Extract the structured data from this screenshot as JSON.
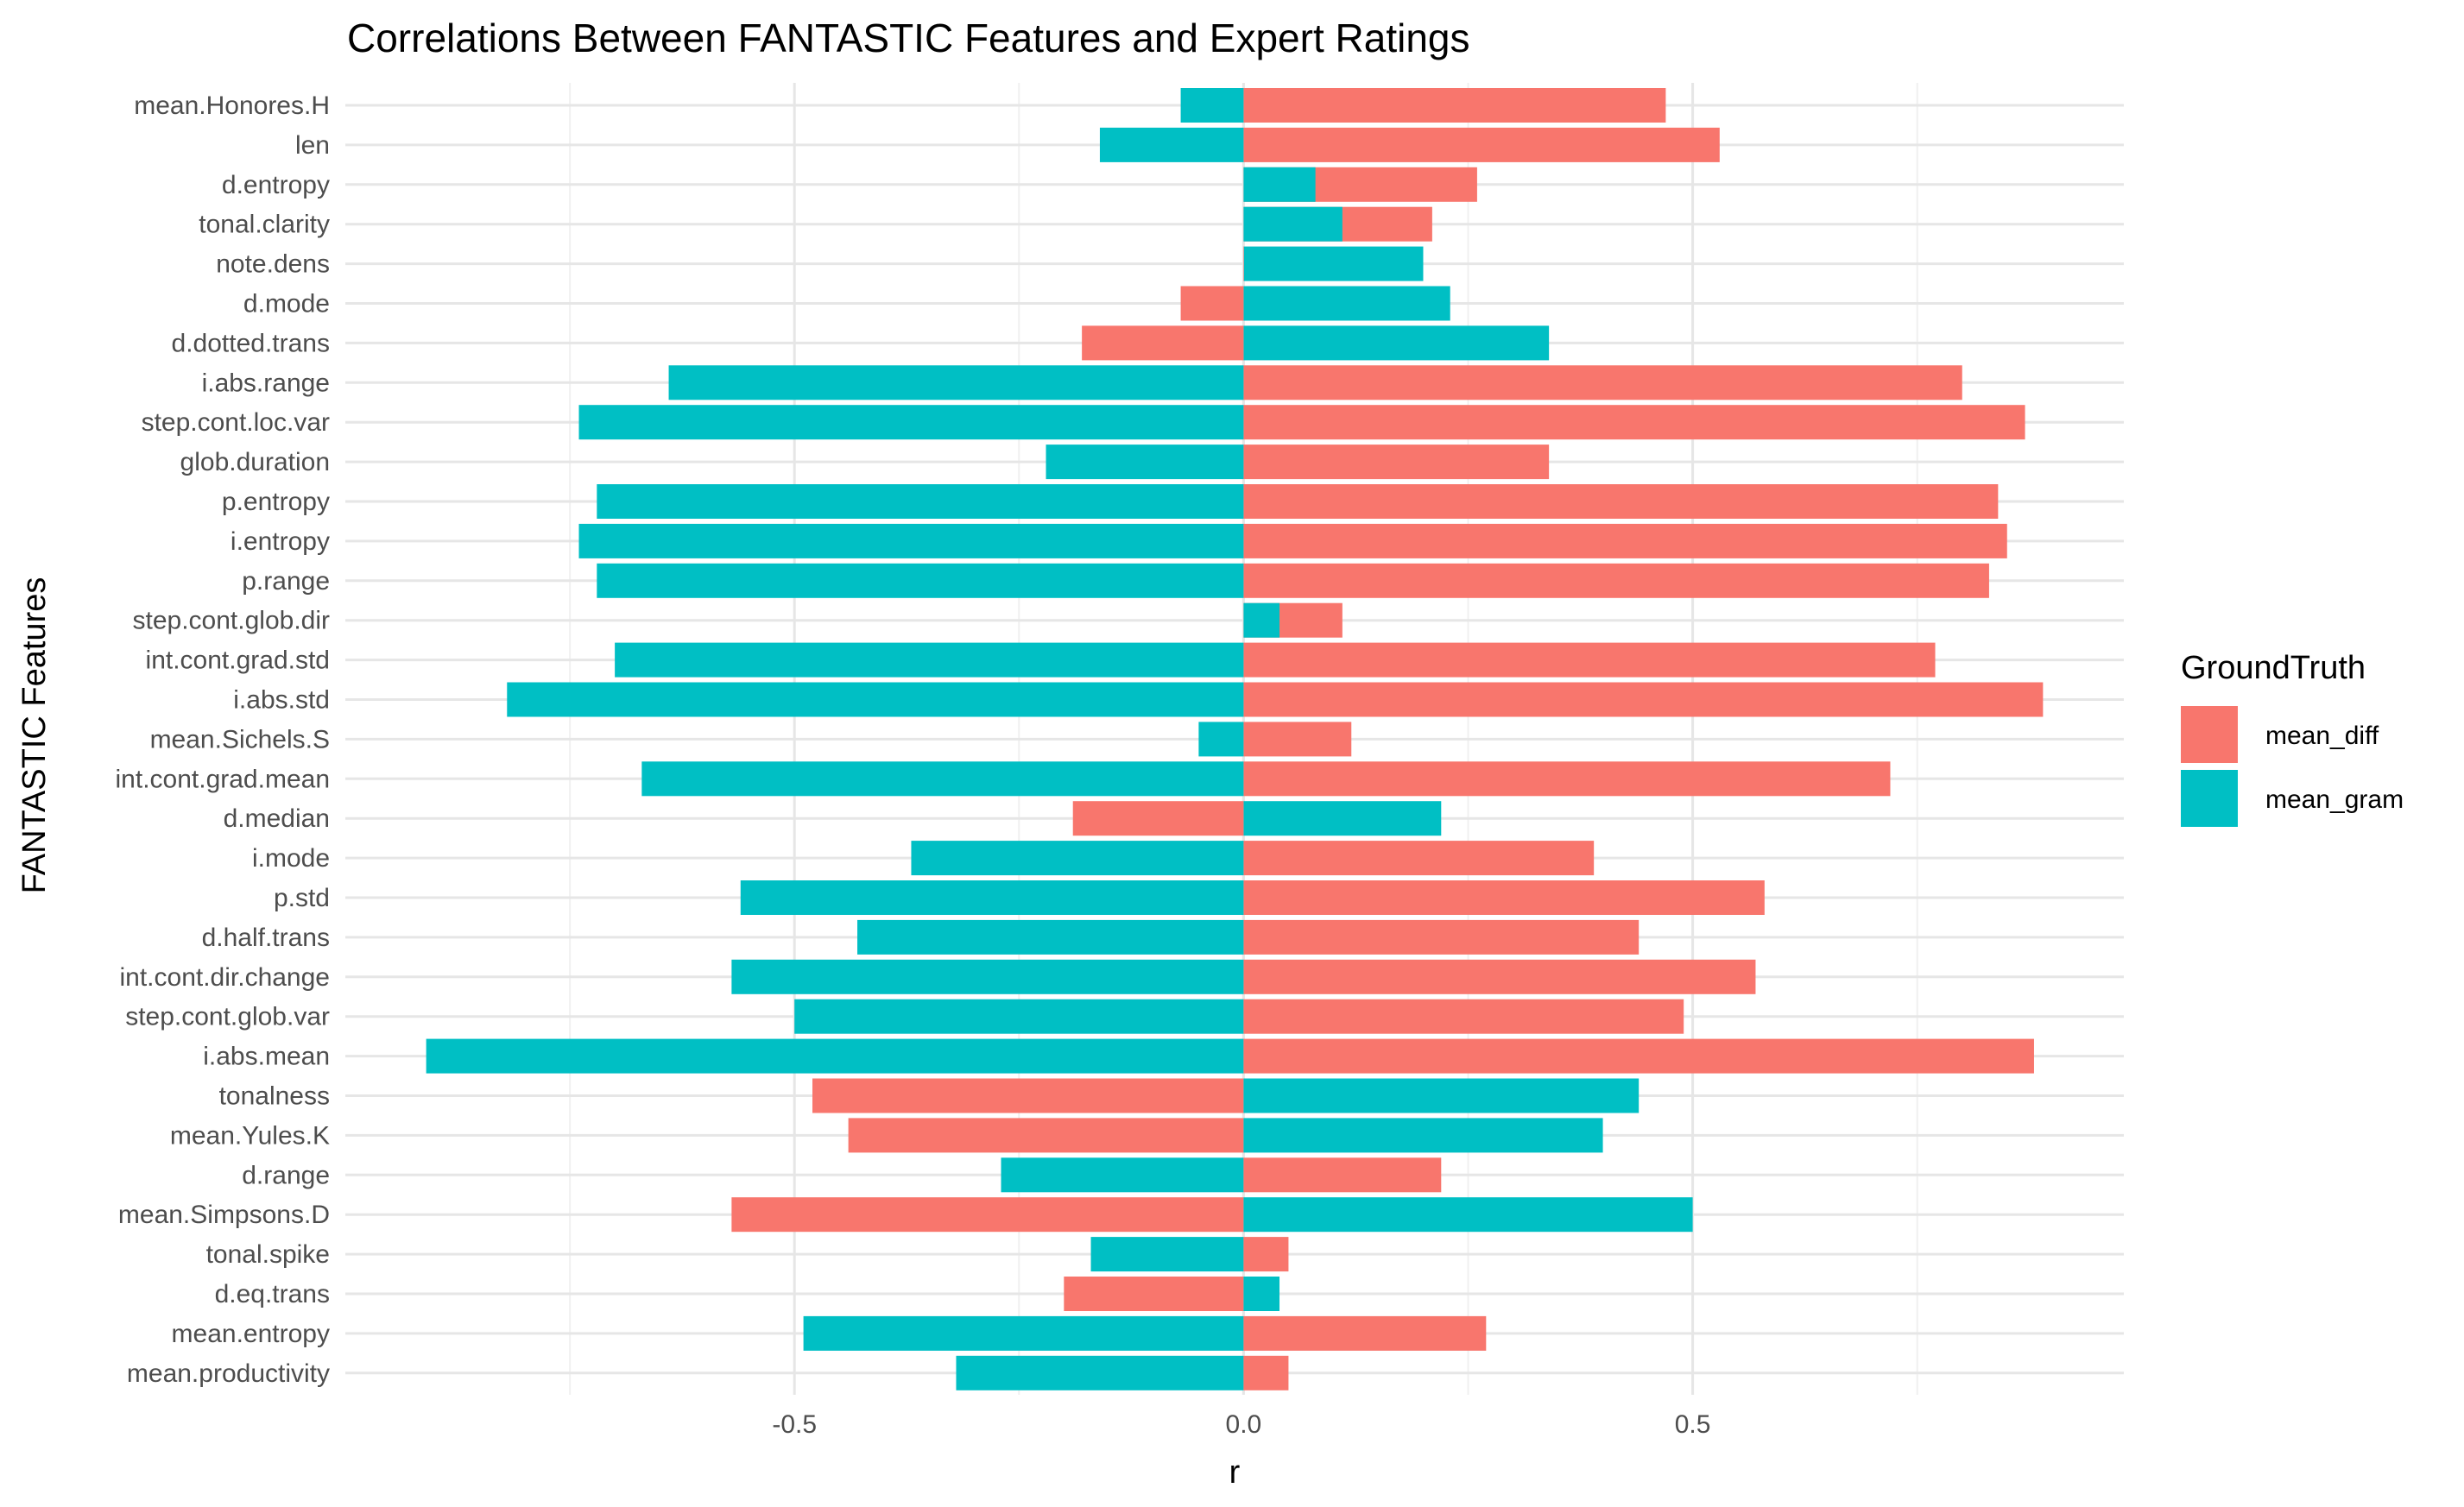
{
  "chart_data": {
    "type": "bar",
    "orientation": "horizontal",
    "title": "Correlations Between FANTASTIC Features and Expert Ratings",
    "xlabel": "r",
    "ylabel": "FANTASTIC Features",
    "xlim": [
      -1.0,
      0.98
    ],
    "xticks": [
      -0.5,
      0.0,
      0.5
    ],
    "xtick_labels": [
      "-0.5",
      "0.0",
      "0.5"
    ],
    "grid": true,
    "legend": {
      "title": "GroundTruth",
      "position": "right"
    },
    "categories": [
      "mean.Honores.H",
      "len",
      "d.entropy",
      "tonal.clarity",
      "note.dens",
      "d.mode",
      "d.dotted.trans",
      "i.abs.range",
      "step.cont.loc.var",
      "glob.duration",
      "p.entropy",
      "i.entropy",
      "p.range",
      "step.cont.glob.dir",
      "int.cont.grad.std",
      "i.abs.std",
      "mean.Sichels.S",
      "int.cont.grad.mean",
      "d.median",
      "i.mode",
      "p.std",
      "d.half.trans",
      "int.cont.dir.change",
      "step.cont.glob.var",
      "i.abs.mean",
      "tonalness",
      "mean.Yules.K",
      "d.range",
      "mean.Simpsons.D",
      "tonal.spike",
      "d.eq.trans",
      "mean.entropy",
      "mean.productivity"
    ],
    "series": [
      {
        "name": "mean_diff",
        "color": "#F8766D",
        "values": [
          0.47,
          0.53,
          0.26,
          0.21,
          0.0,
          -0.07,
          -0.18,
          0.8,
          0.87,
          0.34,
          0.84,
          0.85,
          0.83,
          0.11,
          0.77,
          0.89,
          0.12,
          0.72,
          -0.19,
          0.39,
          0.58,
          0.44,
          0.57,
          0.49,
          0.88,
          -0.48,
          -0.44,
          0.22,
          -0.57,
          0.05,
          -0.2,
          0.27,
          0.05
        ]
      },
      {
        "name": "mean_gram",
        "color": "#00BFC4",
        "values": [
          -0.07,
          -0.16,
          0.08,
          0.11,
          0.2,
          0.23,
          0.34,
          -0.64,
          -0.74,
          -0.22,
          -0.72,
          -0.74,
          -0.72,
          0.04,
          -0.7,
          -0.82,
          -0.05,
          -0.67,
          0.22,
          -0.37,
          -0.56,
          -0.43,
          -0.57,
          -0.5,
          -0.91,
          0.44,
          0.4,
          -0.27,
          0.5,
          -0.17,
          0.04,
          -0.49,
          -0.32
        ]
      }
    ]
  }
}
